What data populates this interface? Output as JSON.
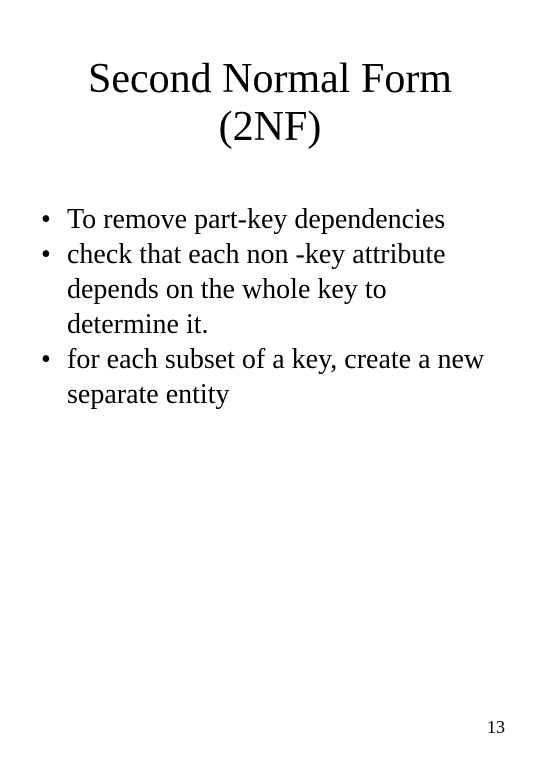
{
  "slide": {
    "title_line1": "Second Normal Form",
    "title_line2": "(2NF)",
    "bullets": [
      "To remove part-key dependencies",
      "check that each non -key attribute depends on the whole key to determine it.",
      "for each subset of a key, create a new separate entity"
    ],
    "page_number": "13"
  },
  "style": {
    "background_color": "#ffffff",
    "text_color": "#000000",
    "font_family": "Times New Roman",
    "title_fontsize": 42,
    "body_fontsize": 28,
    "page_number_fontsize": 18
  }
}
